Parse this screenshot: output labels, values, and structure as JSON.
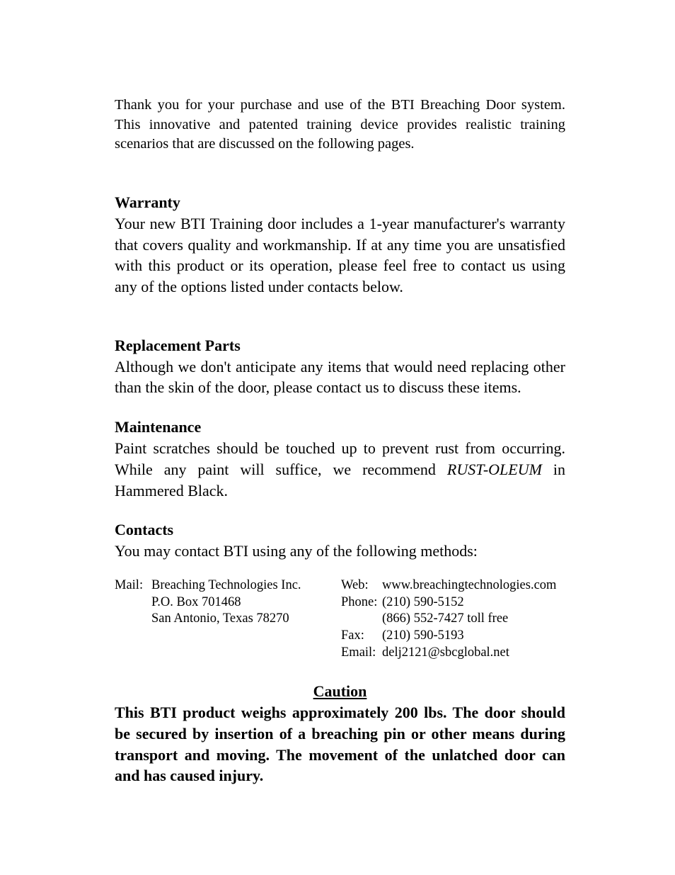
{
  "intro": "Thank you for your purchase and use of the BTI Breaching Door system. This innovative and patented training device provides realistic training scenarios that are discussed on the following pages.",
  "warranty": {
    "heading": "Warranty",
    "body": "Your new BTI Training door includes a 1-year manufacturer's warranty that covers quality and workmanship.  If at any time you are unsatisfied with this product or its operation, please feel free to contact us using any of the options listed under contacts below."
  },
  "replacement": {
    "heading": "Replacement Parts",
    "body": "Although we don't anticipate any items that would need replacing other than the skin of the door, please contact us to discuss these items."
  },
  "maintenance": {
    "heading": "Maintenance",
    "body_part1": "Paint scratches should be touched up to prevent rust from occurring.  While any paint will suffice, we recommend ",
    "body_italic": "RUST-OLEUM",
    "body_part2": " in Hammered Black."
  },
  "contacts": {
    "heading": "Contacts",
    "body": "You may contact BTI using any of the following methods:",
    "mail_label": "Mail:",
    "mail_line1": "Breaching Technologies Inc.",
    "mail_line2": "P.O. Box 701468",
    "mail_line3": "San Antonio, Texas 78270",
    "web_label": "Web:",
    "web_value": "www.breachingtechnologies.com",
    "phone_label": "Phone:",
    "phone_value1": "(210) 590-5152",
    "phone_value2": "(866) 552-7427 toll free",
    "fax_label": "Fax:",
    "fax_value": "(210) 590-5193",
    "email_label": "Email:",
    "email_value": "delj2121@sbcglobal.net"
  },
  "caution": {
    "heading": "Caution",
    "body": "This BTI product weighs approximately 200 lbs.  The door should be secured by insertion of a breaching pin or other means during transport and moving.  The movement of the unlatched door can and has caused injury."
  },
  "styling": {
    "background_color": "#ffffff",
    "text_color": "#000000",
    "body_font_size": 22,
    "intro_font_size": 20.5,
    "contact_font_size": 18.5,
    "font_family": "Times New Roman"
  }
}
